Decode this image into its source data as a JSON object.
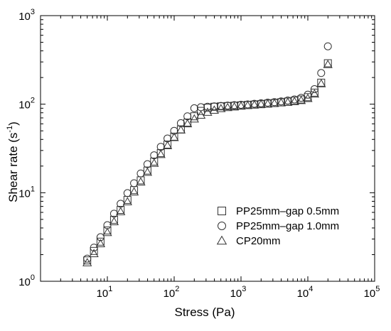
{
  "chart_data": {
    "type": "scatter",
    "xlabel": "Stress (Pa)",
    "ylabel": "Shear rate (s-1)",
    "ylabel_parts": {
      "main": "Shear rate (s",
      "sup": "-1",
      "close": ")"
    },
    "x_scale": "log",
    "y_scale": "log",
    "xlim": [
      1,
      100000
    ],
    "ylim": [
      1,
      1000
    ],
    "grid": false,
    "legend_position": "bottom-right",
    "x_ticks": [
      {
        "value": 10,
        "base": "10",
        "exp": "1"
      },
      {
        "value": 100,
        "base": "10",
        "exp": "2"
      },
      {
        "value": 1000,
        "base": "10",
        "exp": "3"
      },
      {
        "value": 10000,
        "base": "10",
        "exp": "4"
      },
      {
        "value": 100000,
        "base": "10",
        "exp": "5"
      }
    ],
    "y_ticks": [
      {
        "value": 1,
        "base": "10",
        "exp": "0"
      },
      {
        "value": 10,
        "base": "10",
        "exp": "1"
      },
      {
        "value": 100,
        "base": "10",
        "exp": "2"
      },
      {
        "value": 1000,
        "base": "10",
        "exp": "3"
      }
    ],
    "series": [
      {
        "name": "PP25mm–gap 0.5mm",
        "marker": "square",
        "points": [
          [
            5.0,
            1.72
          ],
          [
            6.3,
            2.2
          ],
          [
            7.9,
            2.8
          ],
          [
            10.0,
            3.75
          ],
          [
            12.6,
            4.95
          ],
          [
            15.8,
            6.4
          ],
          [
            20.0,
            8.3
          ],
          [
            25.1,
            10.7
          ],
          [
            31.6,
            13.8
          ],
          [
            39.8,
            17.8
          ],
          [
            50.1,
            22.5
          ],
          [
            63.1,
            28.0
          ],
          [
            79.4,
            35.0
          ],
          [
            100,
            43.0
          ],
          [
            126,
            52.0
          ],
          [
            158,
            62.0
          ],
          [
            200,
            73.0
          ],
          [
            251,
            84.0
          ],
          [
            316,
            91.0
          ],
          [
            398,
            93.5
          ],
          [
            501,
            94.5
          ],
          [
            631,
            95.2
          ],
          [
            794,
            96.0
          ],
          [
            1000,
            97.0
          ],
          [
            1259,
            98.0
          ],
          [
            1585,
            99.0
          ],
          [
            1995,
            100.0
          ],
          [
            2512,
            101.5
          ],
          [
            3162,
            103.0
          ],
          [
            3981,
            105.0
          ],
          [
            5012,
            107.0
          ],
          [
            6310,
            109.5
          ],
          [
            7943,
            113.0
          ],
          [
            10000,
            120.0
          ],
          [
            12589,
            135.0
          ],
          [
            15849,
            175.0
          ],
          [
            19953,
            290.0
          ]
        ]
      },
      {
        "name": "PP25mm–gap 1.0mm",
        "marker": "circle",
        "points": [
          [
            5.0,
            1.8
          ],
          [
            6.3,
            2.4
          ],
          [
            7.9,
            3.15
          ],
          [
            10.0,
            4.3
          ],
          [
            12.6,
            5.8
          ],
          [
            15.8,
            7.5
          ],
          [
            20.0,
            9.9
          ],
          [
            25.1,
            12.8
          ],
          [
            31.6,
            16.5
          ],
          [
            39.8,
            21.0
          ],
          [
            50.1,
            26.5
          ],
          [
            63.1,
            33.0
          ],
          [
            79.4,
            41.0
          ],
          [
            100,
            50.0
          ],
          [
            126,
            61.0
          ],
          [
            158,
            73.0
          ],
          [
            200,
            90.0
          ],
          [
            251,
            92.5
          ],
          [
            316,
            93.5
          ],
          [
            398,
            94.5
          ],
          [
            501,
            95.5
          ],
          [
            631,
            96.5
          ],
          [
            794,
            97.5
          ],
          [
            1000,
            98.5
          ],
          [
            1259,
            99.5
          ],
          [
            1585,
            101.0
          ],
          [
            1995,
            102.5
          ],
          [
            2512,
            104.0
          ],
          [
            3162,
            105.5
          ],
          [
            3981,
            107.5
          ],
          [
            5012,
            110.0
          ],
          [
            6310,
            113.0
          ],
          [
            7943,
            118.0
          ],
          [
            10000,
            128.0
          ],
          [
            12589,
            148.0
          ],
          [
            15849,
            225.0
          ],
          [
            19953,
            450.0
          ]
        ]
      },
      {
        "name": "CP20mm",
        "marker": "triangle",
        "points": [
          [
            5.0,
            1.62
          ],
          [
            6.3,
            2.05
          ],
          [
            7.9,
            2.65
          ],
          [
            10.0,
            3.55
          ],
          [
            12.6,
            4.7
          ],
          [
            15.8,
            6.1
          ],
          [
            20.0,
            7.9
          ],
          [
            25.1,
            10.2
          ],
          [
            31.6,
            13.2
          ],
          [
            39.8,
            17.0
          ],
          [
            50.1,
            21.5
          ],
          [
            63.1,
            27.0
          ],
          [
            79.4,
            34.0
          ],
          [
            100,
            42.0
          ],
          [
            126,
            51.0
          ],
          [
            158,
            60.0
          ],
          [
            200,
            68.0
          ],
          [
            251,
            75.0
          ],
          [
            316,
            81.0
          ],
          [
            398,
            85.5
          ],
          [
            501,
            89.0
          ],
          [
            631,
            91.5
          ],
          [
            794,
            93.0
          ],
          [
            1000,
            95.0
          ],
          [
            1259,
            96.5
          ],
          [
            1585,
            98.0
          ],
          [
            1995,
            99.5
          ],
          [
            2512,
            100.5
          ],
          [
            3162,
            102.0
          ],
          [
            3981,
            103.5
          ],
          [
            5012,
            105.0
          ],
          [
            6310,
            107.0
          ],
          [
            7943,
            110.0
          ],
          [
            10000,
            116.0
          ],
          [
            12589,
            130.0
          ],
          [
            15849,
            170.0
          ],
          [
            19953,
            280.0
          ]
        ]
      }
    ]
  }
}
